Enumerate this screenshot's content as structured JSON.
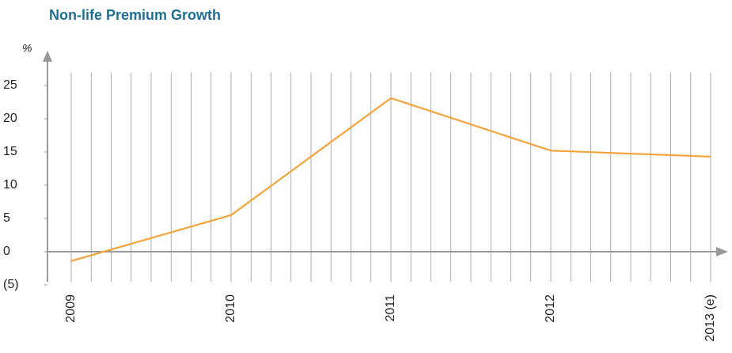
{
  "chart_data": {
    "type": "line",
    "title": "Non-life Premium Growth",
    "y_label": "%",
    "categories": [
      "2009",
      "2010",
      "2011",
      "2012",
      "2013 (e)"
    ],
    "series": [
      {
        "name": "Non-life premium growth",
        "color": "#f4a33a",
        "values": [
          -1.4,
          5.5,
          23.1,
          15.2,
          14.3
        ]
      }
    ],
    "ylim": [
      -5,
      27
    ],
    "yticks": [
      {
        "value": -5,
        "label": "(5)"
      },
      0,
      5,
      10,
      15,
      20,
      25
    ],
    "grid": true
  }
}
